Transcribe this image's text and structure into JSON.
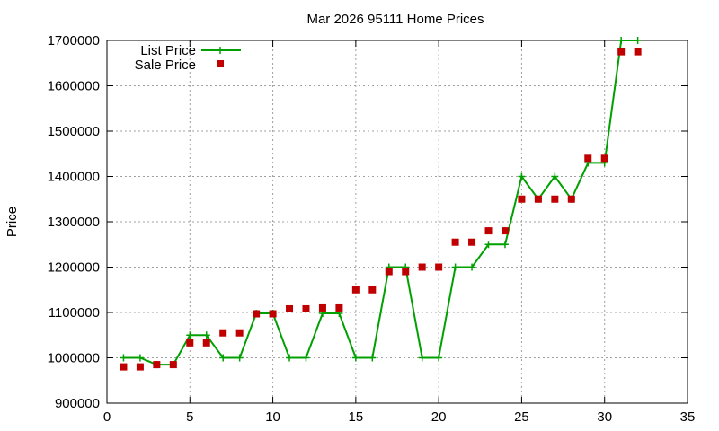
{
  "chart_data": {
    "type": "line",
    "title": "Mar 2026 95111 Home Prices",
    "xlabel": "",
    "ylabel": "Price",
    "xlim": [
      0,
      35
    ],
    "ylim": [
      900000,
      1700000
    ],
    "x_ticks": [
      "0",
      "5",
      "10",
      "15",
      "20",
      "25",
      "30",
      "35"
    ],
    "y_ticks": [
      "900000",
      "1000000",
      "1100000",
      "1200000",
      "1300000",
      "1400000",
      "1500000",
      "1600000",
      "1700000"
    ],
    "grid": true,
    "legend_position": "top-left",
    "series": [
      {
        "name": "List Price",
        "style": "line+plus",
        "color": "#00a000",
        "x": [
          1,
          2,
          3,
          4,
          5,
          6,
          7,
          8,
          9,
          10,
          11,
          12,
          13,
          14,
          15,
          16,
          17,
          18,
          19,
          20,
          21,
          22,
          23,
          24,
          25,
          26,
          27,
          28,
          29,
          30,
          31,
          32
        ],
        "y": [
          1000000,
          1000000,
          985000,
          985000,
          1050000,
          1050000,
          1000000,
          1000000,
          1098000,
          1098000,
          1000000,
          1000000,
          1098000,
          1098000,
          1000000,
          1000000,
          1200000,
          1200000,
          1000000,
          1000000,
          1200000,
          1200000,
          1250000,
          1250000,
          1400000,
          1350000,
          1400000,
          1350000,
          1430000,
          1430000,
          1700000,
          1700000
        ]
      },
      {
        "name": "Sale Price",
        "style": "squares",
        "color": "#c00000",
        "x": [
          1,
          2,
          3,
          4,
          5,
          6,
          7,
          8,
          9,
          10,
          11,
          12,
          13,
          14,
          15,
          16,
          17,
          18,
          19,
          20,
          21,
          22,
          23,
          24,
          25,
          26,
          27,
          28,
          29,
          30,
          31,
          32
        ],
        "y": [
          980000,
          980000,
          985000,
          985000,
          1033000,
          1033000,
          1055000,
          1055000,
          1097000,
          1097000,
          1108000,
          1108000,
          1110000,
          1110000,
          1150000,
          1150000,
          1190000,
          1190000,
          1200000,
          1200000,
          1255000,
          1255000,
          1280000,
          1280000,
          1350000,
          1350000,
          1350000,
          1350000,
          1440000,
          1440000,
          1675000,
          1675000
        ]
      }
    ]
  }
}
